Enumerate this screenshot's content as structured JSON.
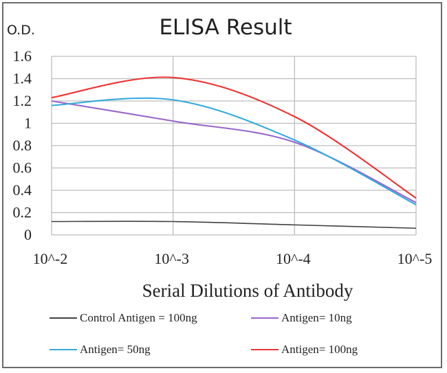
{
  "chart_data": {
    "type": "line",
    "title": "ELISA Result",
    "ylabel": "O.D.",
    "xlabel": "Serial Dilutions of Antibody",
    "x": [
      "10^-2",
      "10^-3",
      "10^-4",
      "10^-5"
    ],
    "x_values": [
      0.01,
      0.001,
      0.0001,
      1e-05
    ],
    "x_scale": "log",
    "ylim": [
      0,
      1.6
    ],
    "yticks": [
      "0",
      "0.2",
      "0.4",
      "0.6",
      "0.8",
      "1",
      "1.2",
      "1.4",
      "1.6"
    ],
    "ytick_values": [
      0,
      0.2,
      0.4,
      0.6,
      0.8,
      1.0,
      1.2,
      1.4,
      1.6
    ],
    "grid": true,
    "legend_position": "bottom",
    "series": [
      {
        "name": "Control Antigen = 100ng",
        "color": "#404040",
        "values": [
          0.12,
          0.12,
          0.09,
          0.06
        ]
      },
      {
        "name": "Antigen= 10ng",
        "color": "#9966cc",
        "values": [
          1.2,
          1.02,
          0.83,
          0.29
        ]
      },
      {
        "name": "Antigen= 50ng",
        "color": "#33aadd",
        "values": [
          1.16,
          1.21,
          0.85,
          0.27
        ]
      },
      {
        "name": "Antigen= 100ng",
        "color": "#ee3333",
        "values": [
          1.23,
          1.41,
          1.06,
          0.33
        ]
      }
    ]
  }
}
